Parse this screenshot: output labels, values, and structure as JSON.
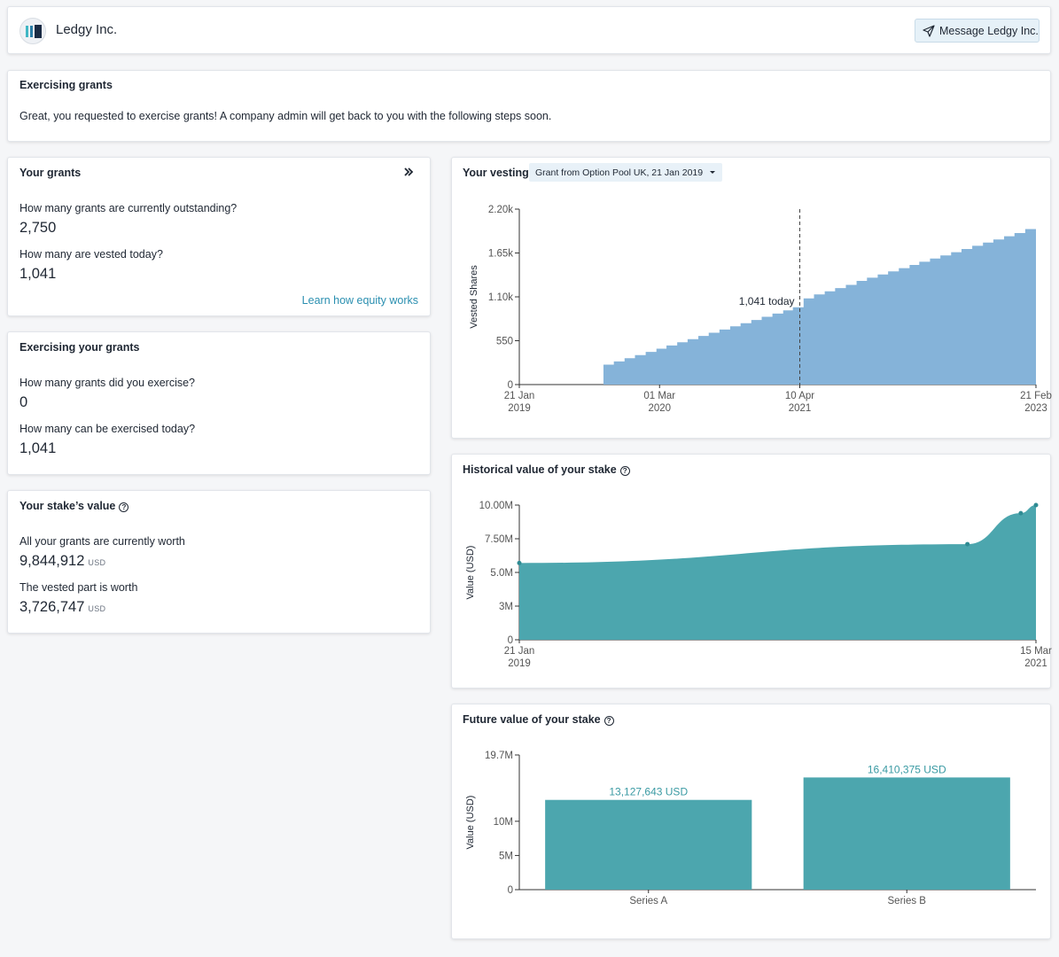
{
  "header": {
    "company_name": "Ledgy Inc.",
    "message_button": "Message Ledgy Inc."
  },
  "notice": {
    "title": "Exercising grants",
    "text": "Great, you requested to exercise grants! A company admin will get back to you with the following steps soon."
  },
  "grants": {
    "title": "Your grants",
    "expand_icon": "double-chevron-right-icon",
    "q1": "How many grants are currently outstanding?",
    "v1": "2,750",
    "q2": "How many are vested today?",
    "v2": "1,041",
    "link": "Learn how equity works",
    "link_color": "#2a8fb0"
  },
  "exercising": {
    "title": "Exercising your grants",
    "q1": "How many grants did you exercise?",
    "v1": "0",
    "q2": "How many can be exercised today?",
    "v2": "1,041"
  },
  "stake": {
    "title": "Your stake’s value",
    "q1": "All your grants are currently worth",
    "v1": "9,844,912",
    "u1": "USD",
    "q2": "The vested part is worth",
    "v2": "3,726,747",
    "u2": "USD"
  },
  "vesting": {
    "title": "Your vesting",
    "dropdown": "Grant from Option Pool UK, 21 Jan 2019",
    "ylabel": "Vested Shares",
    "yticks": [
      "2.20k",
      "1.65k",
      "1.10k",
      "550",
      "0"
    ],
    "xticks": [
      {
        "top": "21 Jan",
        "bottom": "2019"
      },
      {
        "top": "01 Mar",
        "bottom": "2020"
      },
      {
        "top": "10 Apr",
        "bottom": "2021"
      },
      {
        "top": "21 Feb",
        "bottom": "2023"
      }
    ],
    "today_label": "1,041 today"
  },
  "historical": {
    "title": "Historical value of your stake",
    "ylabel": "Value (USD)",
    "yticks": [
      "10.00M",
      "7.50M",
      "5.0M",
      "3M",
      "0"
    ],
    "xticks": [
      {
        "top": "21 Jan",
        "bottom": "2019"
      },
      {
        "top": "15 Mar",
        "bottom": "2021"
      }
    ]
  },
  "future": {
    "title": "Future value of your stake",
    "ylabel": "Value (USD)",
    "yticks": [
      "19.7M",
      "10M",
      "5M",
      "0"
    ]
  },
  "colors": {
    "vesting_fill": "#85b3d9",
    "teal": "#4ca6ae",
    "teal_label": "#3a9aa3"
  },
  "chart_data": [
    {
      "type": "area",
      "title": "Your vesting",
      "ylabel": "Vested Shares",
      "x_range": [
        "2019-01-21",
        "2023-02-21"
      ],
      "ylim": [
        0,
        2200
      ],
      "step": true,
      "x": [
        "2019-01-21",
        "2019-09-21",
        "2019-10-21",
        "2019-11-21",
        "2019-12-21",
        "2020-01-21",
        "2020-02-21",
        "2020-03-21",
        "2020-04-21",
        "2020-05-21",
        "2020-06-21",
        "2020-07-21",
        "2020-08-21",
        "2020-09-21",
        "2020-10-21",
        "2020-11-21",
        "2020-12-21",
        "2021-01-21",
        "2021-02-21",
        "2021-03-21",
        "2021-04-21",
        "2021-05-21",
        "2021-06-21",
        "2021-07-21",
        "2021-08-21",
        "2021-09-21",
        "2021-10-21",
        "2021-11-21",
        "2021-12-21",
        "2022-01-21",
        "2022-02-21",
        "2022-03-21",
        "2022-04-21",
        "2022-05-21",
        "2022-06-21",
        "2022-07-21",
        "2022-08-21",
        "2022-09-21",
        "2022-10-21",
        "2022-11-21",
        "2022-12-21",
        "2023-01-21",
        "2023-02-21"
      ],
      "y": [
        0,
        250,
        290,
        330,
        370,
        410,
        450,
        490,
        530,
        570,
        610,
        650,
        690,
        730,
        770,
        810,
        850,
        890,
        930,
        970,
        1080,
        1130,
        1170,
        1210,
        1250,
        1300,
        1340,
        1380,
        1420,
        1460,
        1500,
        1540,
        1580,
        1620,
        1660,
        1700,
        1740,
        1780,
        1820,
        1860,
        1900,
        1950,
        2000
      ],
      "annotation": {
        "x": "2021-04-10",
        "label": "1,041 today"
      }
    },
    {
      "type": "area",
      "title": "Historical value of your stake",
      "ylabel": "Value (USD)",
      "x": [
        "2019-01-21",
        "2020-12-01",
        "2021-02-20",
        "2021-03-15"
      ],
      "y": [
        5700000,
        7100000,
        9400000,
        10000000
      ],
      "ylim": [
        0,
        10000000
      ]
    },
    {
      "type": "bar",
      "title": "Future value of your stake",
      "ylabel": "Value (USD)",
      "categories": [
        "Series A",
        "Series B"
      ],
      "values": [
        13127643,
        16410375
      ],
      "labels": [
        "13,127,643 USD",
        "16,410,375 USD"
      ],
      "ylim": [
        0,
        19700000
      ]
    }
  ]
}
